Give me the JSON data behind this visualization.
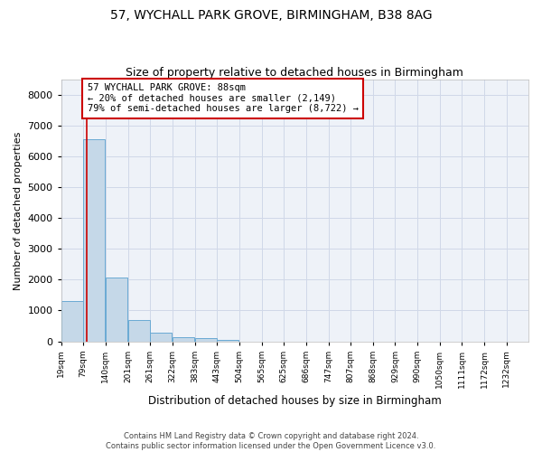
{
  "title_line1": "57, WYCHALL PARK GROVE, BIRMINGHAM, B38 8AG",
  "title_line2": "Size of property relative to detached houses in Birmingham",
  "xlabel": "Distribution of detached houses by size in Birmingham",
  "ylabel": "Number of detached properties",
  "footer_line1": "Contains HM Land Registry data © Crown copyright and database right 2024.",
  "footer_line2": "Contains public sector information licensed under the Open Government Licence v3.0.",
  "property_label": "57 WYCHALL PARK GROVE: 88sqm",
  "annotation_line1": "← 20% of detached houses are smaller (2,149)",
  "annotation_line2": "79% of semi-detached houses are larger (8,722) →",
  "bin_labels": [
    "19sqm",
    "79sqm",
    "140sqm",
    "201sqm",
    "261sqm",
    "322sqm",
    "383sqm",
    "443sqm",
    "504sqm",
    "565sqm",
    "625sqm",
    "686sqm",
    "747sqm",
    "807sqm",
    "868sqm",
    "929sqm",
    "990sqm",
    "1050sqm",
    "1111sqm",
    "1172sqm",
    "1232sqm"
  ],
  "bin_edges": [
    19,
    79,
    140,
    201,
    261,
    322,
    383,
    443,
    504,
    565,
    625,
    686,
    747,
    807,
    868,
    929,
    990,
    1050,
    1111,
    1172,
    1232
  ],
  "bar_heights": [
    1300,
    6580,
    2060,
    690,
    270,
    140,
    90,
    55,
    0,
    0,
    0,
    0,
    0,
    0,
    0,
    0,
    0,
    0,
    0,
    0
  ],
  "bar_color": "#c5d8e8",
  "bar_edge_color": "#6aaad4",
  "vline_color": "#cc0000",
  "vline_x": 88,
  "annotation_box_color": "#cc0000",
  "ylim": [
    0,
    8500
  ],
  "yticks": [
    0,
    1000,
    2000,
    3000,
    4000,
    5000,
    6000,
    7000,
    8000
  ],
  "grid_color": "#d0d8e8",
  "background_color": "#eef2f8",
  "title_fontsize": 10,
  "subtitle_fontsize": 9,
  "ylabel_text": "Number of detached properties"
}
